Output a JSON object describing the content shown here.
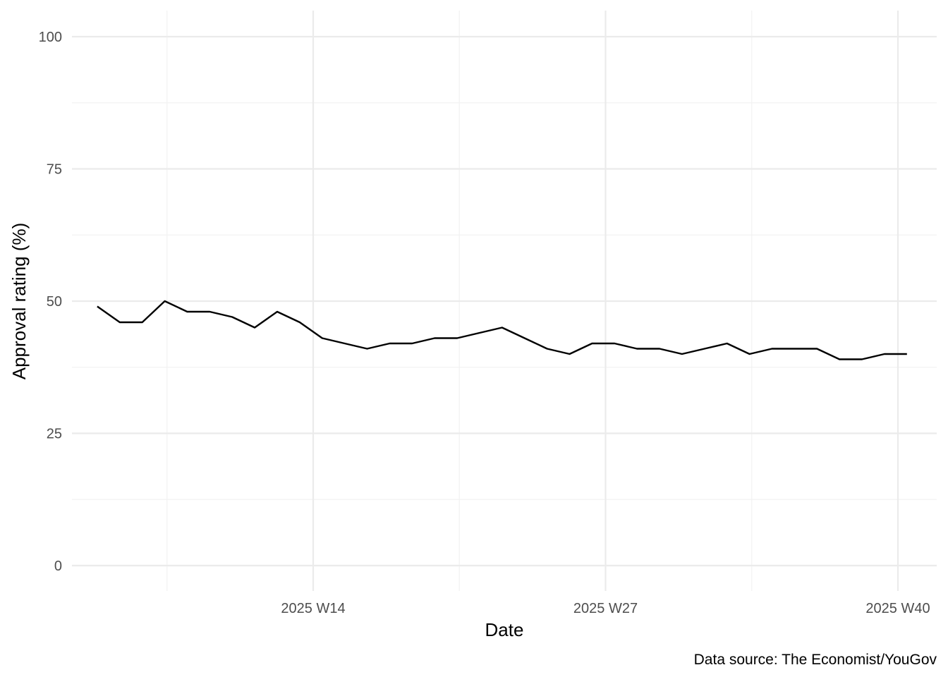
{
  "chart_data": {
    "type": "line",
    "title": "",
    "xlabel": "Date",
    "ylabel": "Approval rating (%)",
    "caption": "Data source: The Economist/YouGov",
    "x_unit": "ISO week of 2025",
    "x_ticks": [
      {
        "value": 14,
        "label": "2025 W14"
      },
      {
        "value": 27,
        "label": "2025 W27"
      },
      {
        "value": 40,
        "label": "2025 W40"
      }
    ],
    "y_ticks": [
      0,
      25,
      50,
      75,
      100
    ],
    "ylim": [
      0,
      100
    ],
    "grid": true,
    "legend": "none",
    "colors": {
      "line": "#000000",
      "grid": "#ebebeb",
      "tick_text": "#4d4d4d"
    },
    "x": [
      4.4,
      5.4,
      6.4,
      7.4,
      8.4,
      9.4,
      10.4,
      11.4,
      12.4,
      13.4,
      14.4,
      15.4,
      16.4,
      17.4,
      18.4,
      19.4,
      20.4,
      21.4,
      22.4,
      23.4,
      24.4,
      25.4,
      26.4,
      27.4,
      28.4,
      29.4,
      30.4,
      31.4,
      32.4,
      33.4,
      34.4,
      35.4,
      36.4,
      37.4,
      38.4,
      39.4,
      40.4
    ],
    "values": [
      49,
      46,
      46,
      50,
      48,
      48,
      47,
      45,
      48,
      46,
      43,
      42,
      41,
      42,
      42,
      43,
      43,
      44,
      45,
      43,
      41,
      40,
      42,
      42,
      41,
      41,
      40,
      41,
      42,
      40,
      41,
      41,
      41,
      39,
      39,
      40,
      40
    ]
  }
}
